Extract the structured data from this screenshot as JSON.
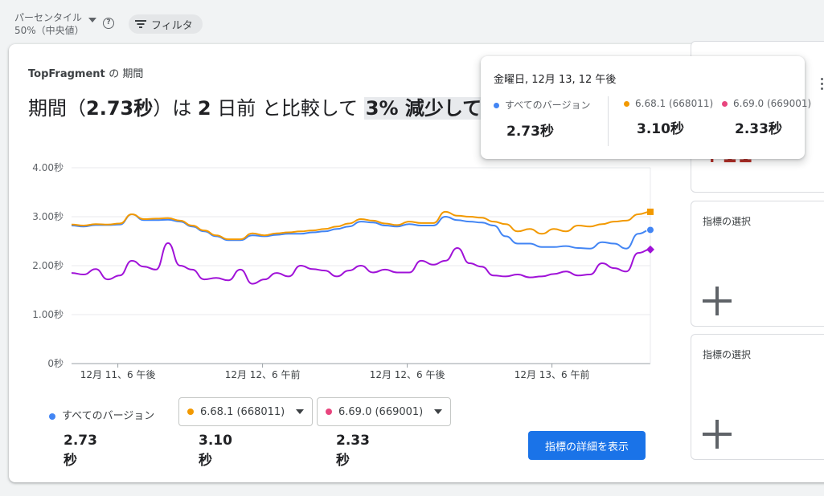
{
  "topbar": {
    "percentile_label": "パーセンタイル",
    "percentile_value": "50%（中央値）",
    "filter_label": "フィルタ"
  },
  "card": {
    "subtitle_name": "TopFragment",
    "subtitle_rest": "の 期間",
    "headline_pre": "期間（",
    "headline_value": "2.73秒",
    "headline_mid": "）は",
    "headline_days": "2",
    "headline_mid2": "日前 と比較して",
    "headline_change": "3% 減少して"
  },
  "chart_data": {
    "type": "line",
    "y_ticks": [
      "4.00秒",
      "3.00秒",
      "2.00秒",
      "1.00秒",
      "0秒"
    ],
    "ylim": [
      0,
      4
    ],
    "x_ticks": [
      "12月 11、6 午後",
      "12月 12、6 午前",
      "12月 12、6 午後",
      "12月 13、6 午前"
    ],
    "x_tick_positions": [
      0.08,
      0.33,
      0.58,
      0.83
    ],
    "grid": true,
    "series": [
      {
        "name": "すべてのバージョン",
        "color": "#4285f4",
        "marker": "circle",
        "values": [
          2.82,
          2.8,
          2.83,
          2.83,
          2.84,
          3.05,
          2.93,
          2.93,
          2.94,
          2.9,
          2.8,
          2.7,
          2.6,
          2.52,
          2.52,
          2.62,
          2.6,
          2.63,
          2.65,
          2.65,
          2.68,
          2.7,
          2.75,
          2.8,
          2.9,
          2.88,
          2.82,
          2.8,
          2.85,
          2.82,
          2.82,
          3.0,
          2.93,
          2.9,
          2.88,
          2.82,
          2.6,
          2.45,
          2.45,
          2.38,
          2.38,
          2.4,
          2.36,
          2.35,
          2.48,
          2.45,
          2.35,
          2.65,
          2.73
        ]
      },
      {
        "name": "6.68.1 (668011)",
        "color": "#f29900",
        "marker": "square",
        "values": [
          2.84,
          2.82,
          2.85,
          2.84,
          2.86,
          3.05,
          2.95,
          2.96,
          2.97,
          2.92,
          2.82,
          2.72,
          2.62,
          2.54,
          2.54,
          2.66,
          2.62,
          2.66,
          2.68,
          2.7,
          2.72,
          2.75,
          2.8,
          2.86,
          2.95,
          2.92,
          2.86,
          2.83,
          2.9,
          2.87,
          2.87,
          3.1,
          3.02,
          3.0,
          2.98,
          2.9,
          2.85,
          2.7,
          2.75,
          2.65,
          2.75,
          2.7,
          2.82,
          2.8,
          2.85,
          2.9,
          2.92,
          3.05,
          3.1
        ]
      },
      {
        "name": "6.69.0 (669001)",
        "color": "#e8457e",
        "line_color": "#a012d8",
        "marker": "diamond",
        "values": [
          1.85,
          1.82,
          1.93,
          1.72,
          1.8,
          2.1,
          1.98,
          1.92,
          2.46,
          2.0,
          1.92,
          1.72,
          1.75,
          1.7,
          1.92,
          1.63,
          1.72,
          1.85,
          1.78,
          2.0,
          1.93,
          1.9,
          1.78,
          1.9,
          2.0,
          1.86,
          1.92,
          1.86,
          1.86,
          2.1,
          2.02,
          2.1,
          2.36,
          2.05,
          1.98,
          1.8,
          1.78,
          1.82,
          1.76,
          1.78,
          1.83,
          1.88,
          1.8,
          1.82,
          2.05,
          1.95,
          1.88,
          2.26,
          2.33
        ]
      }
    ]
  },
  "legend": [
    {
      "name": "すべてのバージョン",
      "value": "2.73秒",
      "color": "#4285f4"
    },
    {
      "name": "6.68.1 (668011)",
      "value": "3.10秒",
      "color": "#f29900"
    },
    {
      "name": "6.69.0 (669001)",
      "value": "2.33秒",
      "color": "#e8457e"
    }
  ],
  "detail_button": "指標の詳細を表示",
  "right_cards": [
    {
      "label": "指標の選択"
    },
    {
      "label": "指標の選択"
    }
  ],
  "tooltip": {
    "date": "金曜日, 12月 13, 12 午後",
    "items": [
      {
        "name": "すべてのバージョン",
        "value": "2.73秒",
        "color": "#4285f4"
      },
      {
        "name": "6.68.1 (668011)",
        "value": "3.10秒",
        "color": "#f29900"
      },
      {
        "name": "6.69.0 (669001)",
        "value": "2.33秒",
        "color": "#e8457e"
      }
    ]
  },
  "colors": {
    "accent": "#1a73e8",
    "partial_card_value_color": "#b3261e"
  }
}
